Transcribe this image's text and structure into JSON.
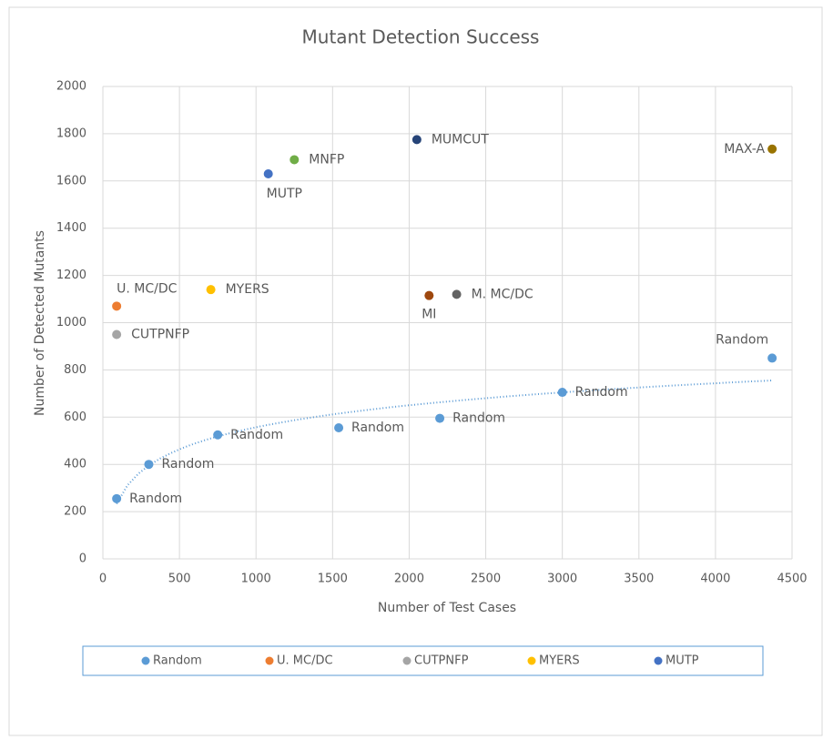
{
  "chart_data": {
    "type": "scatter",
    "title": "Mutant Detection Success",
    "x_label": "Number of Test Cases",
    "y_label": "Number of Detected Mutants",
    "xlim": [
      0,
      4500
    ],
    "ylim": [
      0,
      2000
    ],
    "xticks": [
      0,
      500,
      1000,
      1500,
      2000,
      2500,
      3000,
      3500,
      4000,
      4500
    ],
    "yticks": [
      0,
      200,
      400,
      600,
      800,
      1000,
      1200,
      1400,
      1600,
      1800,
      2000
    ],
    "grid": true,
    "legend": "bottom",
    "series": [
      {
        "name": "Random",
        "color": "#5b9bd5",
        "in_legend": true,
        "trendline": "logarithmic",
        "x": [
          90,
          300,
          750,
          1540,
          2200,
          3000,
          4370
        ],
        "values": [
          255,
          400,
          525,
          555,
          595,
          705,
          850
        ]
      },
      {
        "name": "U. MC/DC",
        "color": "#ed7d31",
        "in_legend": true,
        "x": [
          90
        ],
        "values": [
          1070
        ]
      },
      {
        "name": "CUTPNFP",
        "color": "#a5a5a5",
        "in_legend": true,
        "x": [
          90
        ],
        "values": [
          950
        ]
      },
      {
        "name": "MYERS",
        "color": "#ffc000",
        "in_legend": true,
        "x": [
          705
        ],
        "values": [
          1140
        ]
      },
      {
        "name": "MUTP",
        "color": "#4472c4",
        "in_legend": true,
        "x": [
          1080
        ],
        "values": [
          1630
        ]
      },
      {
        "name": "MNFP",
        "color": "#70ad47",
        "in_legend": false,
        "x": [
          1250
        ],
        "values": [
          1690
        ]
      },
      {
        "name": "MUMCUT",
        "color": "#264478",
        "in_legend": false,
        "x": [
          2050
        ],
        "values": [
          1775
        ]
      },
      {
        "name": "MI",
        "color": "#9e480e",
        "in_legend": false,
        "x": [
          2130
        ],
        "values": [
          1115
        ]
      },
      {
        "name": "M. MC/DC",
        "color": "#636363",
        "in_legend": false,
        "x": [
          2310
        ],
        "values": [
          1120
        ]
      },
      {
        "name": "MAX-A",
        "color": "#997300",
        "in_legend": false,
        "x": [
          4370
        ],
        "values": [
          1735
        ]
      }
    ]
  }
}
